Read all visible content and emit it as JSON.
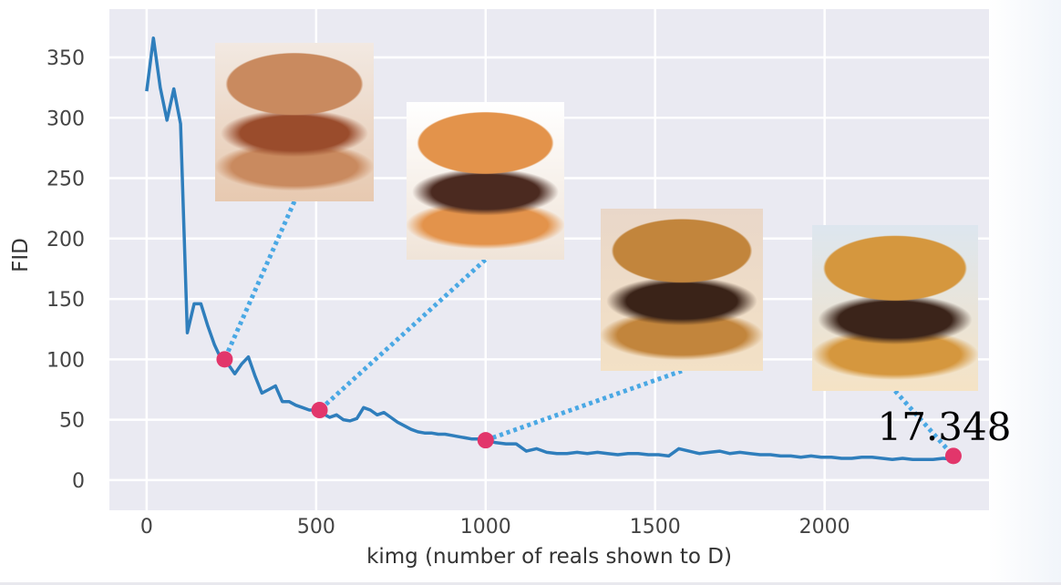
{
  "chart_data": {
    "type": "line",
    "title": "",
    "xlabel": "kimg (number of reals shown to D)",
    "ylabel": "FID",
    "xlim": [
      -110,
      2485
    ],
    "ylim": [
      -25,
      390
    ],
    "xticks": [
      0,
      500,
      1000,
      1500,
      2000
    ],
    "yticks": [
      0,
      50,
      100,
      150,
      200,
      250,
      300,
      350
    ],
    "grid": true,
    "background": "#eaeaf2",
    "series": [
      {
        "color": "#2f7ebc",
        "x": [
          0,
          20,
          40,
          60,
          80,
          100,
          120,
          140,
          160,
          180,
          200,
          220,
          240,
          260,
          280,
          300,
          320,
          340,
          360,
          380,
          400,
          420,
          440,
          460,
          480,
          500,
          520,
          540,
          560,
          580,
          600,
          620,
          640,
          660,
          680,
          700,
          720,
          740,
          760,
          780,
          800,
          820,
          840,
          860,
          880,
          900,
          920,
          940,
          960,
          980,
          1000,
          1030,
          1060,
          1090,
          1120,
          1150,
          1180,
          1210,
          1240,
          1270,
          1300,
          1330,
          1360,
          1390,
          1420,
          1450,
          1480,
          1510,
          1540,
          1570,
          1600,
          1630,
          1660,
          1690,
          1720,
          1750,
          1780,
          1810,
          1840,
          1870,
          1900,
          1930,
          1960,
          1990,
          2020,
          2050,
          2080,
          2110,
          2140,
          2170,
          2200,
          2230,
          2260,
          2290,
          2320,
          2350,
          2380
        ],
        "y": [
          322,
          366,
          325,
          298,
          324,
          295,
          122,
          146,
          146,
          128,
          112,
          100,
          96,
          88,
          96,
          102,
          86,
          72,
          75,
          78,
          65,
          65,
          62,
          60,
          58,
          58,
          55,
          52,
          54,
          50,
          49,
          51,
          60,
          58,
          54,
          56,
          52,
          48,
          45,
          42,
          40,
          39,
          39,
          38,
          38,
          37,
          36,
          35,
          34,
          34,
          33,
          31,
          30,
          30,
          24,
          26,
          23,
          22,
          22,
          23,
          22,
          23,
          22,
          21,
          22,
          22,
          21,
          21,
          20,
          26,
          24,
          22,
          23,
          24,
          22,
          23,
          22,
          21,
          21,
          20,
          20,
          19,
          20,
          19,
          19,
          18,
          18,
          19,
          19,
          18,
          17,
          18,
          17,
          17,
          17,
          18,
          17
        ]
      }
    ],
    "highlight_points": [
      {
        "x": 230,
        "y": 100,
        "color": "#e2366b"
      },
      {
        "x": 510,
        "y": 58,
        "color": "#e2366b"
      },
      {
        "x": 1000,
        "y": 33,
        "color": "#e2366b"
      },
      {
        "x": 2380,
        "y": 20,
        "color": "#e2366b"
      }
    ],
    "annotations": [
      {
        "text": "17.348",
        "x": 2380,
        "y": 20
      }
    ],
    "thumbnails": [
      {
        "name": "sample-image-1",
        "point": 0,
        "colors": [
          "#c98a5f",
          "#9a4c2c",
          "#e7c9b0",
          "#f2e9e2"
        ]
      },
      {
        "name": "sample-image-2",
        "point": 1,
        "colors": [
          "#e3934b",
          "#4b2a20",
          "#f0e4d8",
          "#ffffff"
        ]
      },
      {
        "name": "sample-image-3",
        "point": 2,
        "colors": [
          "#c2853c",
          "#3a2318",
          "#f3e1c6",
          "#e9d7c9"
        ]
      },
      {
        "name": "sample-image-4",
        "point": 3,
        "colors": [
          "#d5973e",
          "#3b241a",
          "#f5e3c5",
          "#dde6ef"
        ]
      }
    ],
    "connector_color": "#4aa8e4"
  }
}
